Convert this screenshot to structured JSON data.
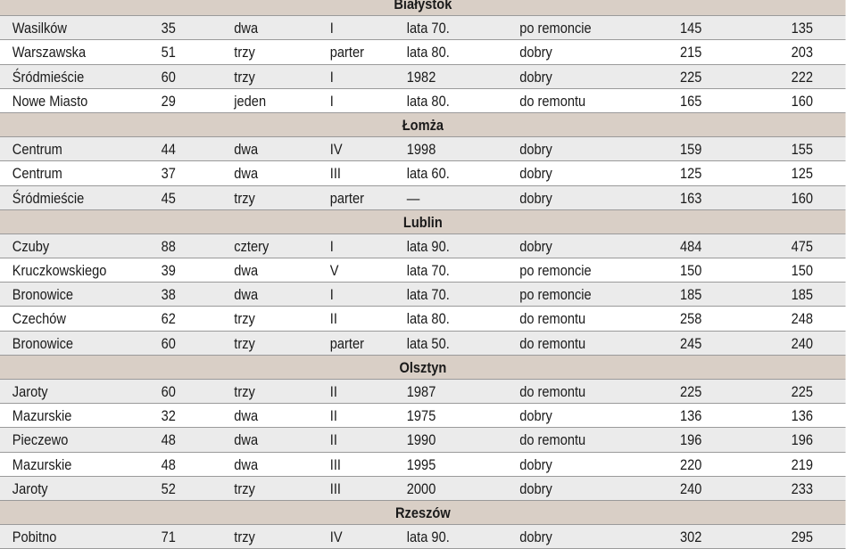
{
  "sections": [
    {
      "city": "Białystok",
      "rows": [
        [
          "Wasilków",
          "35",
          "dwa",
          "I",
          "lata 70.",
          "po remoncie",
          "145",
          "135"
        ],
        [
          "Warszawska",
          "51",
          "trzy",
          "parter",
          "lata 80.",
          "dobry",
          "215",
          "203"
        ],
        [
          "Śródmieście",
          "60",
          "trzy",
          "I",
          "1982",
          "dobry",
          "225",
          "222"
        ],
        [
          "Nowe Miasto",
          "29",
          "jeden",
          "I",
          "lata 80.",
          "do remontu",
          "165",
          "160"
        ]
      ]
    },
    {
      "city": "Łomża",
      "rows": [
        [
          "Centrum",
          "44",
          "dwa",
          "IV",
          "1998",
          "dobry",
          "159",
          "155"
        ],
        [
          "Centrum",
          "37",
          "dwa",
          "III",
          "lata 60.",
          "dobry",
          "125",
          "125"
        ],
        [
          "Śródmieście",
          "45",
          "trzy",
          "parter",
          "—",
          "dobry",
          "163",
          "160"
        ]
      ]
    },
    {
      "city": "Lublin",
      "rows": [
        [
          "Czuby",
          "88",
          "cztery",
          "I",
          "lata 90.",
          "dobry",
          "484",
          "475"
        ],
        [
          "Kruczkowskiego",
          "39",
          "dwa",
          "V",
          "lata 70.",
          "po remoncie",
          "150",
          "150"
        ],
        [
          "Bronowice",
          "38",
          "dwa",
          "I",
          "lata 70.",
          "po remoncie",
          "185",
          "185"
        ],
        [
          "Czechów",
          "62",
          "trzy",
          "II",
          "lata 80.",
          "do remontu",
          "258",
          "248"
        ],
        [
          "Bronowice",
          "60",
          "trzy",
          "parter",
          "lata 50.",
          "do remontu",
          "245",
          "240"
        ]
      ]
    },
    {
      "city": "Olsztyn",
      "rows": [
        [
          "Jaroty",
          "60",
          "trzy",
          "II",
          "1987",
          "do remontu",
          "225",
          "225"
        ],
        [
          "Mazurskie",
          "32",
          "dwa",
          "II",
          "1975",
          "dobry",
          "136",
          "136"
        ],
        [
          "Pieczewo",
          "48",
          "dwa",
          "II",
          "1990",
          "do remontu",
          "196",
          "196"
        ],
        [
          "Mazurskie",
          "48",
          "dwa",
          "III",
          "1995",
          "dobry",
          "220",
          "219"
        ],
        [
          "Jaroty",
          "52",
          "trzy",
          "III",
          "2000",
          "dobry",
          "240",
          "233"
        ]
      ]
    },
    {
      "city": "Rzeszów",
      "rows": [
        [
          "Pobitno",
          "71",
          "trzy",
          "IV",
          "lata 90.",
          "dobry",
          "302",
          "295"
        ]
      ]
    }
  ]
}
